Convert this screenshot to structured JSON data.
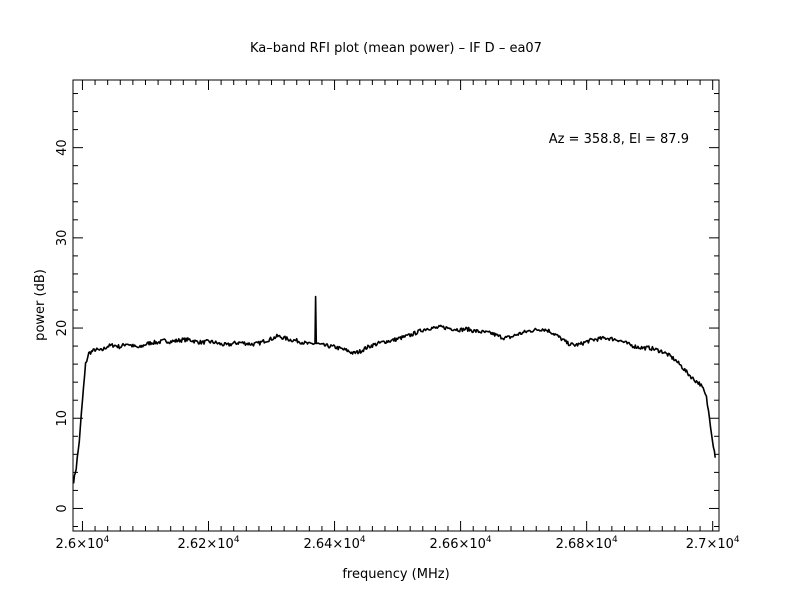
{
  "chart_data": {
    "type": "line",
    "title": "Ka–band RFI plot (mean power) – IF D – ea07",
    "xlabel": "frequency (MHz)",
    "ylabel": "power (dB)",
    "annotation": "Az = 358.8, El = 87.9",
    "xlim": [
      25985,
      27010
    ],
    "ylim": [
      -2.5,
      47.5
    ],
    "grid": false,
    "x_major_ticks": [
      26000,
      26200,
      26400,
      26600,
      26800,
      27000
    ],
    "x_tick_labels": [
      {
        "mantissa": "2.6×10",
        "exp": "4"
      },
      {
        "mantissa": "2.62×10",
        "exp": "4"
      },
      {
        "mantissa": "2.64×10",
        "exp": "4"
      },
      {
        "mantissa": "2.66×10",
        "exp": "4"
      },
      {
        "mantissa": "2.68×10",
        "exp": "4"
      },
      {
        "mantissa": "2.7×10",
        "exp": "4"
      }
    ],
    "y_major_ticks": [
      0,
      10,
      20,
      30,
      40
    ],
    "y_tick_labels": [
      "0",
      "10",
      "20",
      "30",
      "40"
    ],
    "series": [
      {
        "color": "#000000",
        "points": [
          [
            25986,
            3.0
          ],
          [
            25990,
            4.5
          ],
          [
            25995,
            7.5
          ],
          [
            26000,
            12.0
          ],
          [
            26005,
            16.0
          ],
          [
            26010,
            17.2
          ],
          [
            26020,
            17.6
          ],
          [
            26030,
            17.5
          ],
          [
            26040,
            18.0
          ],
          [
            26050,
            18.1
          ],
          [
            26060,
            17.9
          ],
          [
            26070,
            18.3
          ],
          [
            26080,
            18.0
          ],
          [
            26090,
            17.8
          ],
          [
            26100,
            18.2
          ],
          [
            26110,
            18.4
          ],
          [
            26120,
            18.4
          ],
          [
            26130,
            18.6
          ],
          [
            26140,
            18.5
          ],
          [
            26150,
            18.6
          ],
          [
            26160,
            18.7
          ],
          [
            26170,
            18.7
          ],
          [
            26180,
            18.5
          ],
          [
            26190,
            18.4
          ],
          [
            26200,
            18.5
          ],
          [
            26210,
            18.4
          ],
          [
            26220,
            18.2
          ],
          [
            26230,
            18.1
          ],
          [
            26240,
            18.3
          ],
          [
            26250,
            18.4
          ],
          [
            26260,
            18.3
          ],
          [
            26270,
            18.2
          ],
          [
            26280,
            18.3
          ],
          [
            26290,
            18.6
          ],
          [
            26300,
            18.8
          ],
          [
            26310,
            19.1
          ],
          [
            26320,
            18.9
          ],
          [
            26330,
            18.7
          ],
          [
            26340,
            18.6
          ],
          [
            26350,
            18.4
          ],
          [
            26360,
            18.2
          ],
          [
            26369,
            18.3
          ],
          [
            26370,
            23.5
          ],
          [
            26371,
            18.3
          ],
          [
            26380,
            18.1
          ],
          [
            26390,
            18.0
          ],
          [
            26400,
            17.9
          ],
          [
            26410,
            17.7
          ],
          [
            26420,
            17.5
          ],
          [
            26430,
            17.2
          ],
          [
            26440,
            17.4
          ],
          [
            26450,
            17.8
          ],
          [
            26460,
            18.1
          ],
          [
            26470,
            18.3
          ],
          [
            26480,
            18.5
          ],
          [
            26490,
            18.6
          ],
          [
            26500,
            18.8
          ],
          [
            26510,
            19.0
          ],
          [
            26520,
            19.2
          ],
          [
            26530,
            19.5
          ],
          [
            26540,
            19.8
          ],
          [
            26550,
            20.0
          ],
          [
            26560,
            20.0
          ],
          [
            26570,
            20.1
          ],
          [
            26580,
            20.0
          ],
          [
            26590,
            19.9
          ],
          [
            26600,
            19.8
          ],
          [
            26610,
            19.9
          ],
          [
            26620,
            19.7
          ],
          [
            26630,
            19.6
          ],
          [
            26640,
            19.5
          ],
          [
            26650,
            19.4
          ],
          [
            26660,
            19.1
          ],
          [
            26670,
            18.9
          ],
          [
            26680,
            19.0
          ],
          [
            26690,
            19.3
          ],
          [
            26700,
            19.5
          ],
          [
            26710,
            19.7
          ],
          [
            26720,
            19.8
          ],
          [
            26730,
            19.9
          ],
          [
            26740,
            19.7
          ],
          [
            26750,
            19.3
          ],
          [
            26760,
            18.8
          ],
          [
            26770,
            18.3
          ],
          [
            26780,
            18.1
          ],
          [
            26790,
            18.2
          ],
          [
            26800,
            18.5
          ],
          [
            26810,
            18.7
          ],
          [
            26820,
            18.8
          ],
          [
            26830,
            18.9
          ],
          [
            26840,
            18.8
          ],
          [
            26850,
            18.7
          ],
          [
            26860,
            18.4
          ],
          [
            26870,
            18.1
          ],
          [
            26880,
            17.9
          ],
          [
            26890,
            17.8
          ],
          [
            26900,
            17.8
          ],
          [
            26910,
            17.6
          ],
          [
            26920,
            17.4
          ],
          [
            26930,
            17.0
          ],
          [
            26940,
            16.5
          ],
          [
            26950,
            15.8
          ],
          [
            26960,
            15.0
          ],
          [
            26970,
            14.3
          ],
          [
            26980,
            13.8
          ],
          [
            26985,
            13.2
          ],
          [
            26990,
            12.3
          ],
          [
            26995,
            10.0
          ],
          [
            27000,
            7.5
          ],
          [
            27004,
            5.8
          ]
        ]
      }
    ]
  }
}
